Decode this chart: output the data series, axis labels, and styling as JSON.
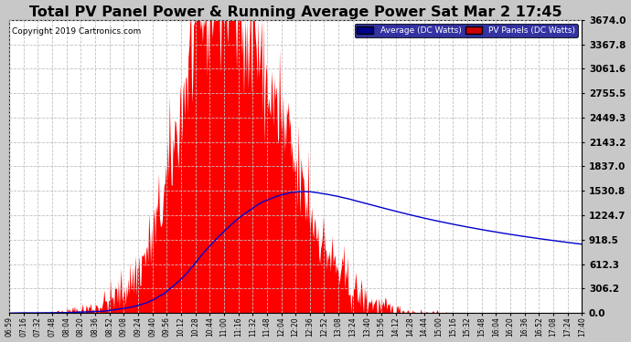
{
  "title": "Total PV Panel Power & Running Average Power Sat Mar 2 17:45",
  "copyright": "Copyright 2019 Cartronics.com",
  "legend_avg": "Average (DC Watts)",
  "legend_pv": "PV Panels (DC Watts)",
  "yticks": [
    0.0,
    306.2,
    612.3,
    918.5,
    1224.7,
    1530.8,
    1837.0,
    2143.2,
    2449.3,
    2755.5,
    3061.6,
    3367.8,
    3674.0
  ],
  "ymax": 3674.0,
  "ymin": 0.0,
  "plot_bg_color": "#ffffff",
  "fig_bg_color": "#c8c8c8",
  "grid_color": "#c0c0c0",
  "bar_color": "#ff0000",
  "avg_color": "#0000cd",
  "title_fontsize": 11.5,
  "xtick_labels": [
    "06:59",
    "07:16",
    "07:32",
    "07:48",
    "08:04",
    "08:20",
    "08:36",
    "08:52",
    "09:08",
    "09:24",
    "09:40",
    "09:56",
    "10:12",
    "10:28",
    "10:44",
    "11:00",
    "11:16",
    "11:32",
    "11:48",
    "12:04",
    "12:20",
    "12:36",
    "12:52",
    "13:08",
    "13:24",
    "13:40",
    "13:56",
    "14:12",
    "14:28",
    "14:44",
    "15:00",
    "15:16",
    "15:32",
    "15:48",
    "16:04",
    "16:20",
    "16:36",
    "16:52",
    "17:08",
    "17:24",
    "17:40"
  ]
}
